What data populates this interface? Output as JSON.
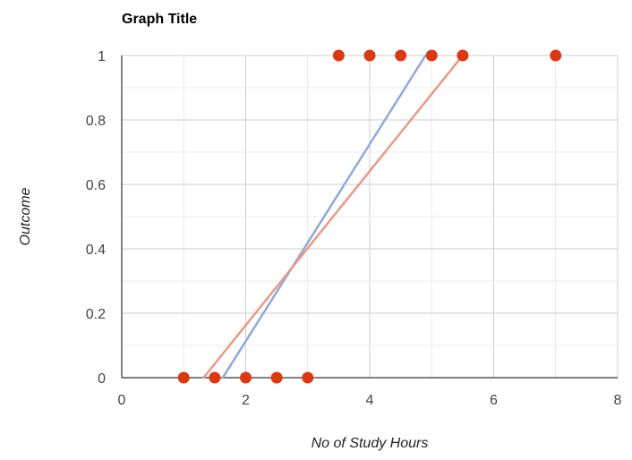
{
  "chart_data": {
    "type": "scatter",
    "title": "Graph Title",
    "xlabel": "No of Study Hours",
    "ylabel": "Outcome",
    "xlim": [
      0,
      8
    ],
    "ylim": [
      0,
      1
    ],
    "x_ticks": [
      "0",
      "2",
      "4",
      "6",
      "8"
    ],
    "y_ticks": [
      "0",
      "0.2",
      "0.4",
      "0.6",
      "0.8",
      "1"
    ],
    "grid": true,
    "legend": "none",
    "colors": {
      "points": "#dc3912",
      "line_blue": "#8fa9dc",
      "line_orange": "#e99a84",
      "grid": "#cccccc",
      "axis": "#333333"
    },
    "points": [
      {
        "x": 1,
        "y": 0
      },
      {
        "x": 1.5,
        "y": 0
      },
      {
        "x": 2,
        "y": 0
      },
      {
        "x": 2.5,
        "y": 0
      },
      {
        "x": 3,
        "y": 0
      },
      {
        "x": 3.5,
        "y": 1
      },
      {
        "x": 4,
        "y": 1
      },
      {
        "x": 4.5,
        "y": 1
      },
      {
        "x": 5,
        "y": 1
      },
      {
        "x": 5.5,
        "y": 1
      },
      {
        "x": 7,
        "y": 1
      }
    ],
    "lines": [
      {
        "color": "#8fa9dc",
        "x": [
          1.63,
          4.9
        ],
        "y": [
          0,
          1
        ]
      },
      {
        "color": "#e99a84",
        "x": [
          1.32,
          5.5
        ],
        "y": [
          0,
          1
        ]
      }
    ]
  }
}
